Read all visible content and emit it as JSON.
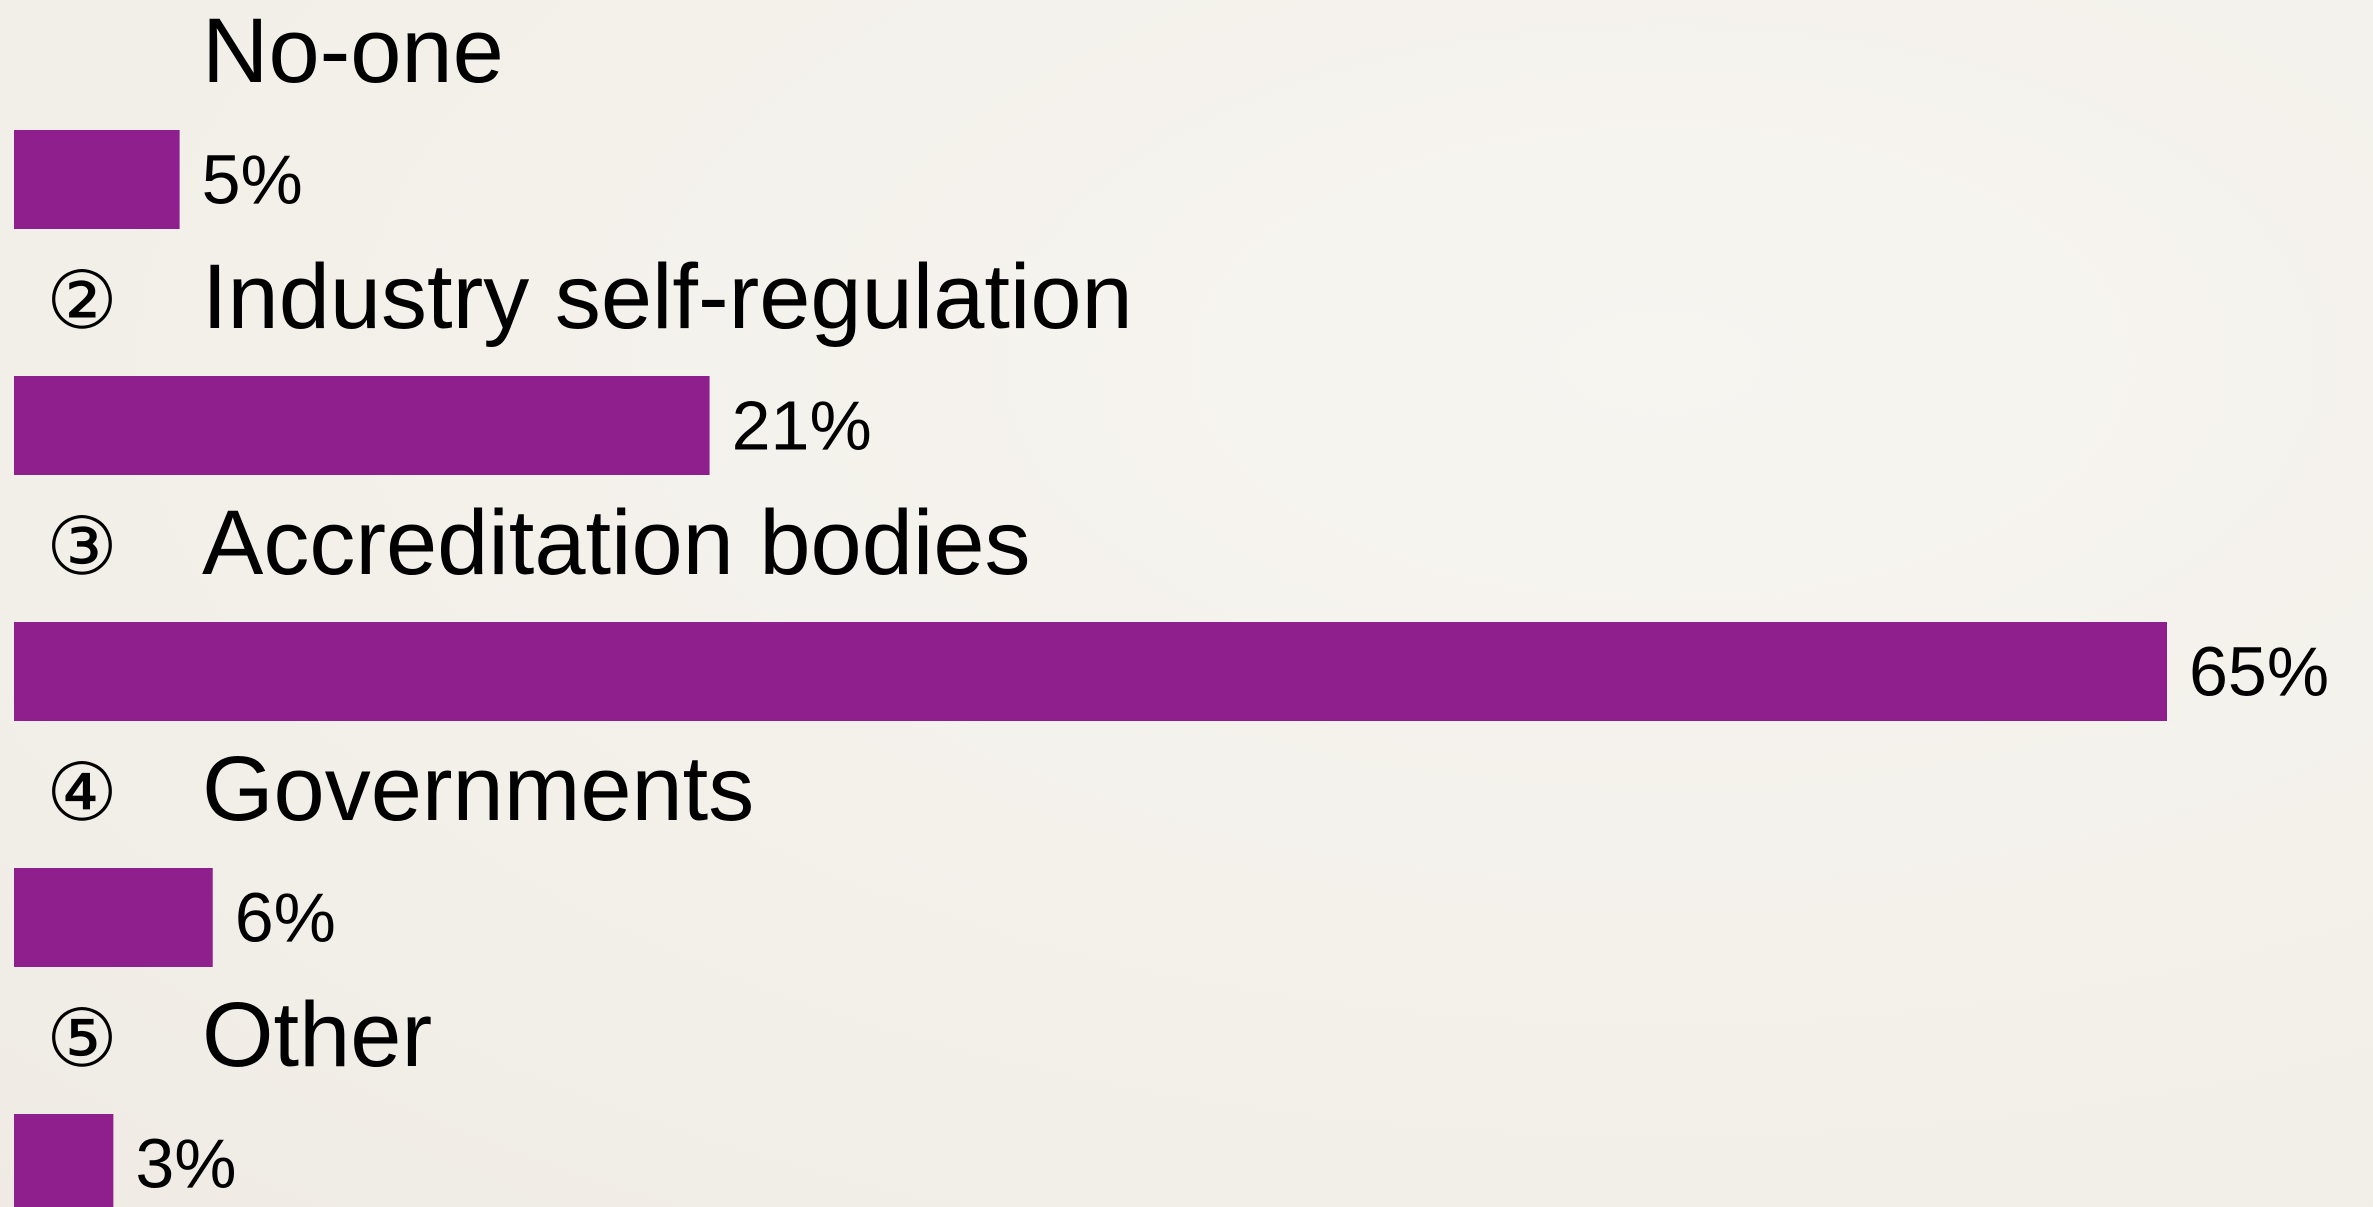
{
  "chart_data": {
    "type": "bar",
    "orientation": "horizontal",
    "categories": [
      {
        "number": "",
        "label": "No-one"
      },
      {
        "number": "②",
        "label": "Industry self-regulation"
      },
      {
        "number": "③",
        "label": "Accreditation bodies"
      },
      {
        "number": "④",
        "label": "Governments"
      },
      {
        "number": "⑤",
        "label": "Other"
      }
    ],
    "values": [
      5,
      21,
      65,
      6,
      3
    ],
    "value_labels": [
      "5%",
      "21%",
      "65%",
      "6%",
      "3%"
    ],
    "xlim": [
      0,
      65
    ],
    "grid": false,
    "bar_color": "#8e1f8c"
  }
}
